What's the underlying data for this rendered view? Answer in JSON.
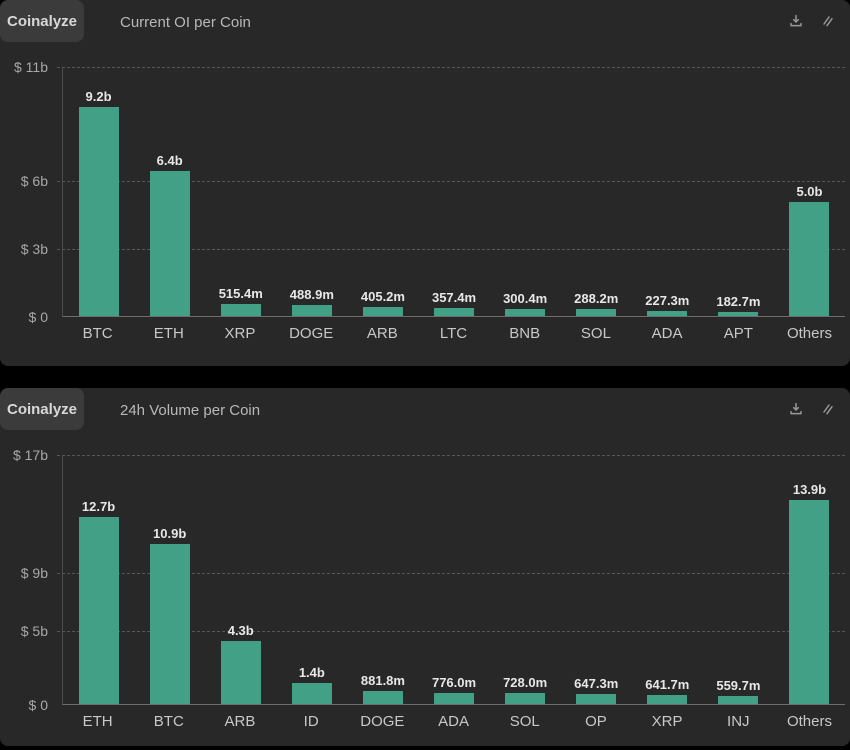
{
  "widget": {
    "brand": "Coinalyze",
    "icons": [
      {
        "name": "download-icon",
        "meaning": "export/download chart image"
      },
      {
        "name": "draw-icon",
        "meaning": "drawing/annotation tools"
      }
    ]
  },
  "colors": {
    "bar": "#42a087",
    "card_bg": "#282828",
    "page_bg": "#000000",
    "badge_bg": "#3b3b3b",
    "grid": "#565656",
    "axis": "#6e6e6e",
    "title_text": "#b8b8b8",
    "tick_text": "#a8a8a8",
    "value_text": "#e8e8e8",
    "category_text": "#c8c8c8",
    "icon": "#9a9a9a"
  },
  "chart_data": [
    {
      "type": "bar",
      "title": "Current OI per Coin",
      "categories": [
        "BTC",
        "ETH",
        "XRP",
        "DOGE",
        "ARB",
        "LTC",
        "BNB",
        "SOL",
        "ADA",
        "APT",
        "Others"
      ],
      "values": [
        9.2,
        6.4,
        0.5154,
        0.4889,
        0.4052,
        0.3574,
        0.3004,
        0.2882,
        0.2273,
        0.1827,
        5.0
      ],
      "value_labels": [
        "9.2b",
        "6.4b",
        "515.4m",
        "488.9m",
        "405.2m",
        "357.4m",
        "300.4m",
        "288.2m",
        "227.3m",
        "182.7m",
        "5.0b"
      ],
      "unit": "USD",
      "values_unit": "billions",
      "y_max": 11,
      "ylim": [
        0,
        11
      ],
      "y_ticks": [
        {
          "value": 11,
          "label": "$ 11b"
        },
        {
          "value": 6,
          "label": "$ 6b"
        },
        {
          "value": 3,
          "label": "$ 3b"
        },
        {
          "value": 0,
          "label": "$ 0"
        }
      ],
      "grid": "dashed-horizontal",
      "legend": "none"
    },
    {
      "type": "bar",
      "title": "24h Volume per Coin",
      "categories": [
        "ETH",
        "BTC",
        "ARB",
        "ID",
        "DOGE",
        "ADA",
        "SOL",
        "OP",
        "XRP",
        "INJ",
        "Others"
      ],
      "values": [
        12.7,
        10.9,
        4.3,
        1.4,
        0.8818,
        0.776,
        0.728,
        0.6473,
        0.6417,
        0.5597,
        13.9
      ],
      "value_labels": [
        "12.7b",
        "10.9b",
        "4.3b",
        "1.4b",
        "881.8m",
        "776.0m",
        "728.0m",
        "647.3m",
        "641.7m",
        "559.7m",
        "13.9b"
      ],
      "unit": "USD",
      "values_unit": "billions",
      "y_max": 17,
      "ylim": [
        0,
        17
      ],
      "y_ticks": [
        {
          "value": 17,
          "label": "$ 17b"
        },
        {
          "value": 9,
          "label": "$ 9b"
        },
        {
          "value": 5,
          "label": "$ 5b"
        },
        {
          "value": 0,
          "label": "$ 0"
        }
      ],
      "grid": "dashed-horizontal",
      "legend": "none"
    }
  ]
}
